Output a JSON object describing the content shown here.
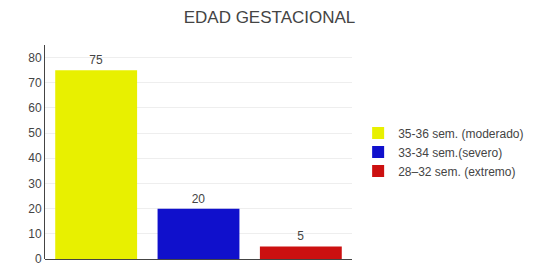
{
  "chart_data": {
    "type": "bar",
    "title": "EDAD GESTACIONAL",
    "categories": [
      "35-36 sem. (moderado)",
      "33-34 sem.(severo)",
      "28–32 sem. (extremo)"
    ],
    "values": [
      75,
      20,
      5
    ],
    "colors": [
      "#e8f000",
      "#1010cc",
      "#cc1010"
    ],
    "ylim": [
      0,
      85
    ],
    "yticks": [
      0,
      10,
      20,
      30,
      40,
      50,
      60,
      70,
      80
    ],
    "grid": true,
    "legend": "right",
    "data_labels": true,
    "tick_labels": "y"
  }
}
